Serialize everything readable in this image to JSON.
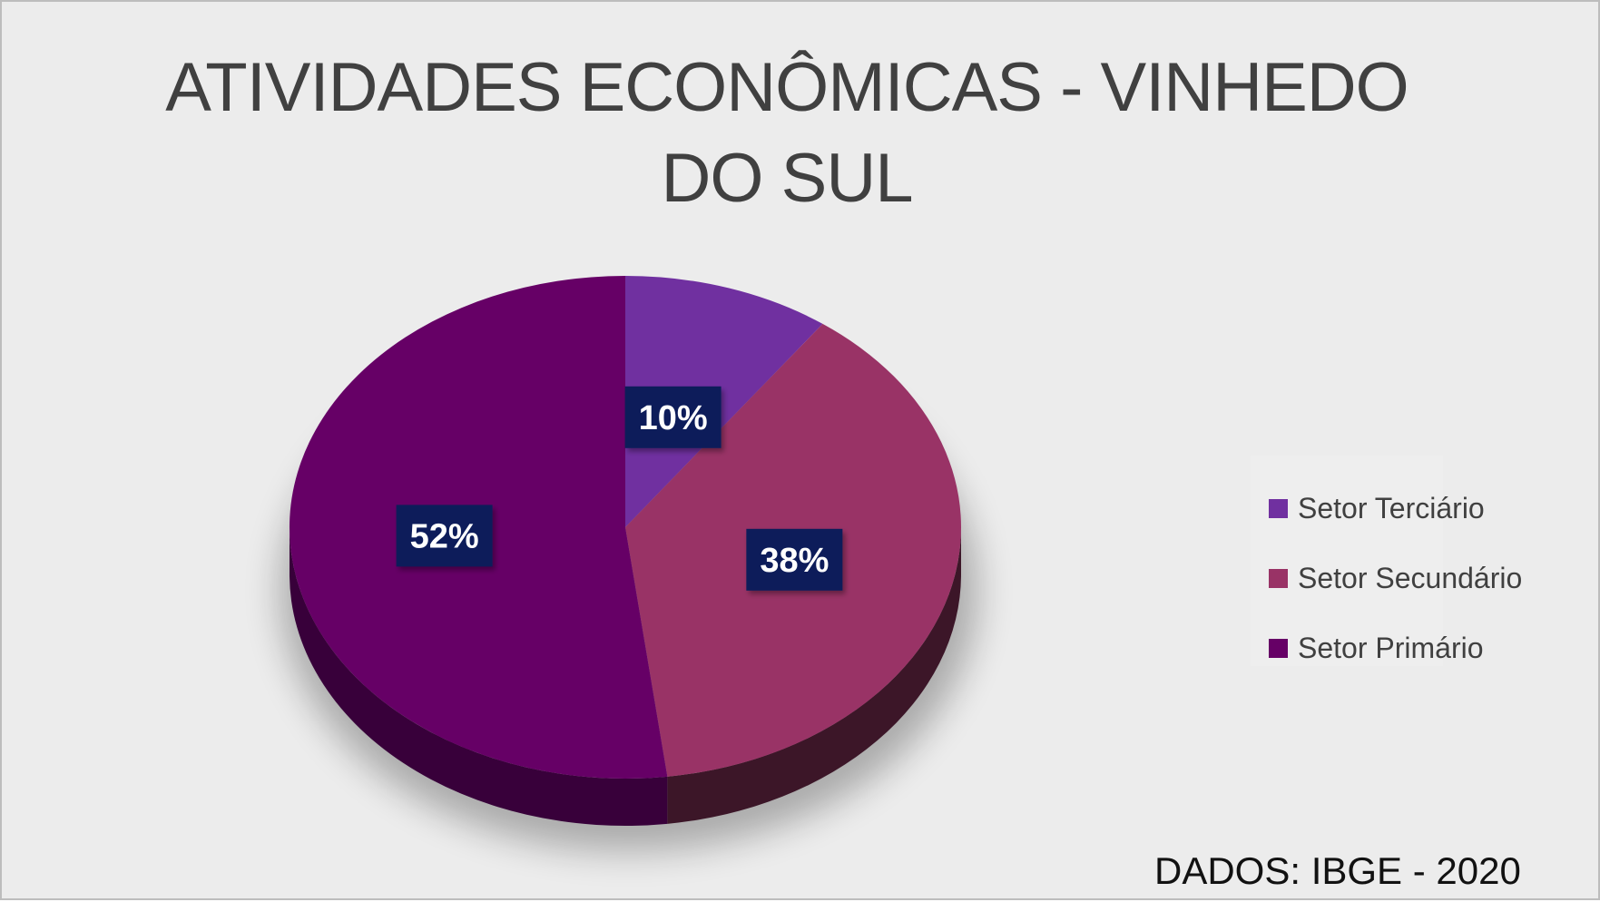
{
  "title_lines": [
    "ATIVIDADES ECONÔMICAS - VINHEDO",
    "DO SUL"
  ],
  "source_note": "DADOS: IBGE - 2020",
  "chart_data": {
    "type": "pie",
    "style": "3d",
    "title": "ATIVIDADES ECONÔMICAS - VINHEDO DO SUL",
    "slices": [
      {
        "label": "Setor Terciário",
        "value": 10,
        "data_label": "10%",
        "color": "#7030a0",
        "side_color": "#3f1a5a"
      },
      {
        "label": "Setor Secundário",
        "value": 38,
        "data_label": "38%",
        "color": "#993366",
        "side_color": "#3c1628"
      },
      {
        "label": "Setor Primário",
        "value": 52,
        "data_label": "52%",
        "color": "#660066",
        "side_color": "#38003a"
      }
    ],
    "data_label_style": {
      "background": "#0f1e5a",
      "text_color": "#ffffff"
    },
    "legend_position": "right",
    "background": "#ececec"
  }
}
